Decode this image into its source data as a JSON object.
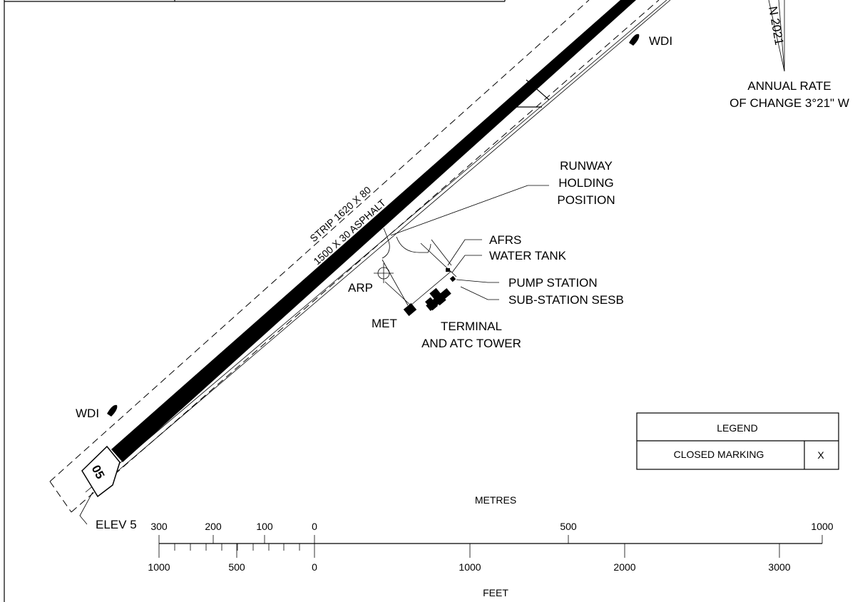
{
  "runway": {
    "designator": "05",
    "strip": "STRIP 1620 X 80",
    "surface": "1500 X 30 ASPHALT",
    "elevation": "ELEV 5"
  },
  "magnetic": {
    "date_fragment": "N 2021",
    "rate_line1": "ANNUAL RATE",
    "rate_line2": "OF CHANGE 3°21\" W"
  },
  "labels": {
    "wdi_top": "WDI",
    "wdi_bottom": "WDI",
    "holding_1": "RUNWAY",
    "holding_2": "HOLDING",
    "holding_3": "POSITION",
    "afrs": "AFRS",
    "water_tank": "WATER TANK",
    "pump_station": "PUMP STATION",
    "sub_station": "SUB-STATION SESB",
    "arp": "ARP",
    "met": "MET",
    "terminal_1": "TERMINAL",
    "terminal_2": "AND ATC TOWER"
  },
  "legend": {
    "title": "LEGEND",
    "item_label": "CLOSED MARKING",
    "item_symbol": "X"
  },
  "scale": {
    "metres_title": "METRES",
    "feet_title": "FEET",
    "metres_ticks": [
      "300",
      "200",
      "100",
      "0",
      "500",
      "1000"
    ],
    "feet_ticks": [
      "1000",
      "500",
      "0",
      "1000",
      "2000",
      "3000"
    ]
  },
  "colors": {
    "ink": "#000000",
    "paper": "#ffffff"
  }
}
